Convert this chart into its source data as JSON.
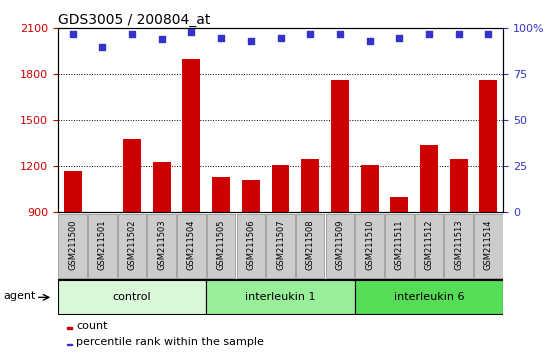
{
  "title": "GDS3005 / 200804_at",
  "samples": [
    "GSM211500",
    "GSM211501",
    "GSM211502",
    "GSM211503",
    "GSM211504",
    "GSM211505",
    "GSM211506",
    "GSM211507",
    "GSM211508",
    "GSM211509",
    "GSM211510",
    "GSM211511",
    "GSM211512",
    "GSM211513",
    "GSM211514"
  ],
  "counts": [
    1170,
    870,
    1380,
    1230,
    1900,
    1130,
    1110,
    1210,
    1250,
    1760,
    1210,
    1000,
    1340,
    1250,
    1760
  ],
  "percentile_ranks": [
    97,
    90,
    97,
    94,
    98,
    95,
    93,
    95,
    97,
    97,
    93,
    95,
    97,
    97,
    97
  ],
  "bar_color": "#cc0000",
  "dot_color": "#3333cc",
  "ylim_left": [
    900,
    2100
  ],
  "ylim_right": [
    0,
    100
  ],
  "yticks_left": [
    900,
    1200,
    1500,
    1800,
    2100
  ],
  "yticks_right": [
    0,
    25,
    50,
    75,
    100
  ],
  "groups": [
    {
      "label": "control",
      "start": 0,
      "end": 5,
      "color": "#d8f8d8"
    },
    {
      "label": "interleukin 1",
      "start": 5,
      "end": 10,
      "color": "#99ee99"
    },
    {
      "label": "interleukin 6",
      "start": 10,
      "end": 15,
      "color": "#55dd55"
    }
  ],
  "xlabel_agent": "agent",
  "legend_count_label": "count",
  "legend_percentile_label": "percentile rank within the sample",
  "tick_label_color_left": "#cc0000",
  "tick_label_color_right": "#3333cc",
  "title_fontsize": 10,
  "axis_fontsize": 8,
  "label_fontsize": 6,
  "group_fontsize": 8,
  "legend_fontsize": 8
}
